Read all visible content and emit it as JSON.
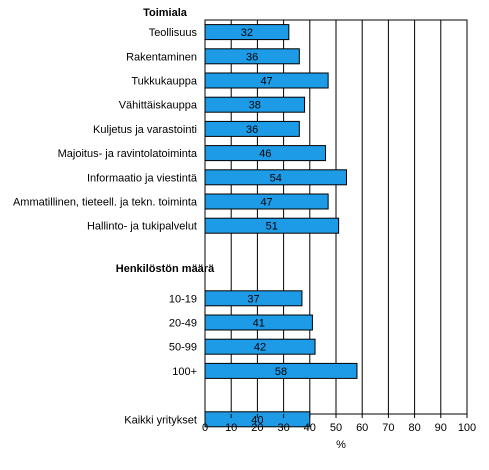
{
  "chart_data": {
    "type": "bar",
    "orientation": "horizontal",
    "xlabel": "%",
    "xlim": [
      0,
      100
    ],
    "xticks": [
      0,
      10,
      20,
      30,
      40,
      50,
      60,
      70,
      80,
      90,
      100
    ],
    "grid": true,
    "bar_color": "#1e9be6",
    "groups": [
      {
        "heading": "Toimiala",
        "categories": [
          "Teollisuus",
          "Rakentaminen",
          "Tukkukauppa",
          "Vähittäiskauppa",
          "Kuljetus ja varastointi",
          "Majoitus- ja ravintolatoiminta",
          "Informaatio ja viestintä",
          "Ammatillinen, tieteell. ja tekn. toiminta",
          "Hallinto- ja tukipalvelut"
        ],
        "values": [
          32,
          36,
          47,
          38,
          36,
          46,
          54,
          47,
          51
        ]
      },
      {
        "heading": "Henkilöstön määrä",
        "categories": [
          "10-19",
          "20-49",
          "50-99",
          "100+"
        ],
        "values": [
          37,
          41,
          42,
          58
        ]
      },
      {
        "heading": "",
        "categories": [
          "Kaikki yritykset"
        ],
        "values": [
          40
        ]
      }
    ]
  }
}
